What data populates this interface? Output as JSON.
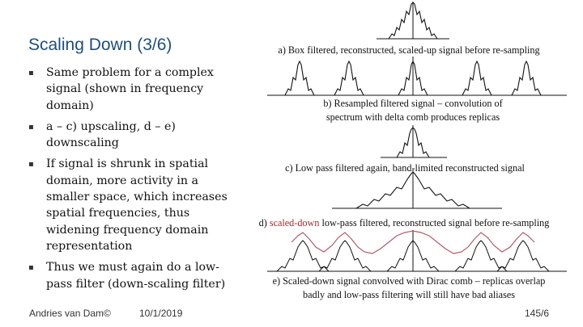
{
  "slide": {
    "title": "Scaling Down (3/6)",
    "bullets": [
      "Same problem for a complex signal (shown in frequency domain)",
      "a – c) upscaling, d – e) downscaling",
      "If signal is shrunk in spatial domain, more activity in a smaller space, which increases spatial frequencies, thus widening frequency domain representation",
      "Thus we must again do a low-pass filter (down-scaling filter)"
    ],
    "bullet_icon": "square-bullet-icon"
  },
  "captions": {
    "a": "a) Box filtered, reconstructed, scaled-up signal before re-sampling",
    "b_line1": "b) Resampled filtered signal – convolution of",
    "b_line2": "spectrum with delta comb produces replicas",
    "c": "c) Low pass filtered again, band-limited reconstructed signal",
    "d_prefix": "d)",
    "d_highlight": "scaled-down",
    "d_rest": "low-pass filtered, reconstructed signal before re-sampling",
    "e_line1": "e) Scaled-down signal convolved with Dirac comb – replicas overlap",
    "e_line2": "badly and low-pass filtering will still have bad aliases"
  },
  "footer": {
    "author": "Andries van Dam©",
    "date": "10/1/2019",
    "page": "145/6"
  },
  "colors": {
    "title": "#1f4e79",
    "overlap_curve": "#b05a6a",
    "highlight_text": "#9c2a2a"
  }
}
